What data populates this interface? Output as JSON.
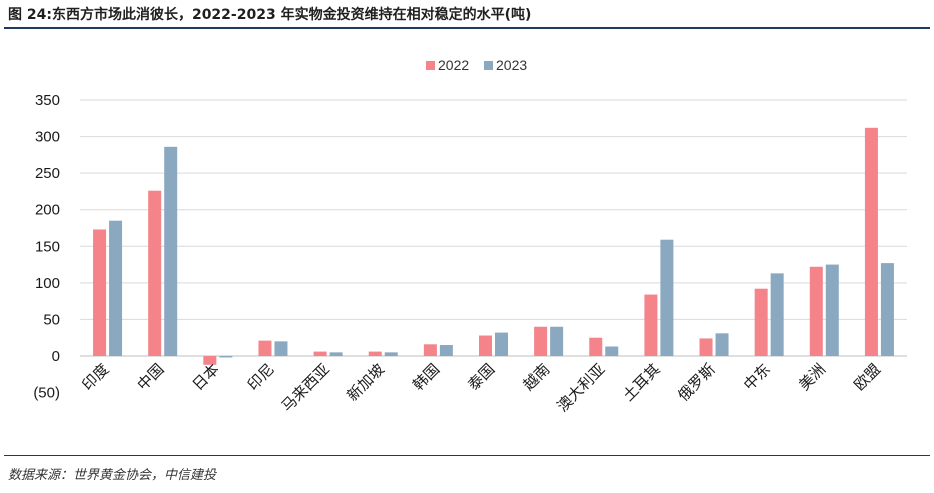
{
  "header": {
    "title": "图 24:东西方市场此消彼长，2022-2023 年实物金投资维持在相对稳定的水平(吨)"
  },
  "footer": {
    "source": "数据来源：世界黄金协会，中信建投"
  },
  "colors": {
    "series_2022": "#f4838a",
    "series_2023": "#8aa8c0",
    "gridline": "#d9d9d9",
    "negative_label": "#c00000",
    "rule": "#1e3a5f"
  },
  "chart_data": {
    "type": "bar",
    "title": "",
    "xlabel": "",
    "ylabel": "",
    "ylim": [
      -50,
      350
    ],
    "yticks": [
      -50,
      0,
      50,
      100,
      150,
      200,
      250,
      300,
      350
    ],
    "ytick_labels": [
      "(50)",
      "0",
      "50",
      "100",
      "150",
      "200",
      "250",
      "300",
      "350"
    ],
    "grid": true,
    "legend_position": "top-center",
    "categories": [
      "印度",
      "中国",
      "日本",
      "印尼",
      "马来西亚",
      "新加坡",
      "韩国",
      "泰国",
      "越南",
      "澳大利亚",
      "土耳其",
      "俄罗斯",
      "中东",
      "美洲",
      "欧盟"
    ],
    "series": [
      {
        "name": "2022",
        "values": [
          173,
          226,
          -12,
          21,
          6,
          6,
          16,
          28,
          40,
          25,
          84,
          24,
          92,
          122,
          312
        ]
      },
      {
        "name": "2023",
        "values": [
          185,
          286,
          -2,
          20,
          5,
          5,
          15,
          32,
          40,
          13,
          159,
          31,
          113,
          125,
          127
        ]
      }
    ]
  }
}
